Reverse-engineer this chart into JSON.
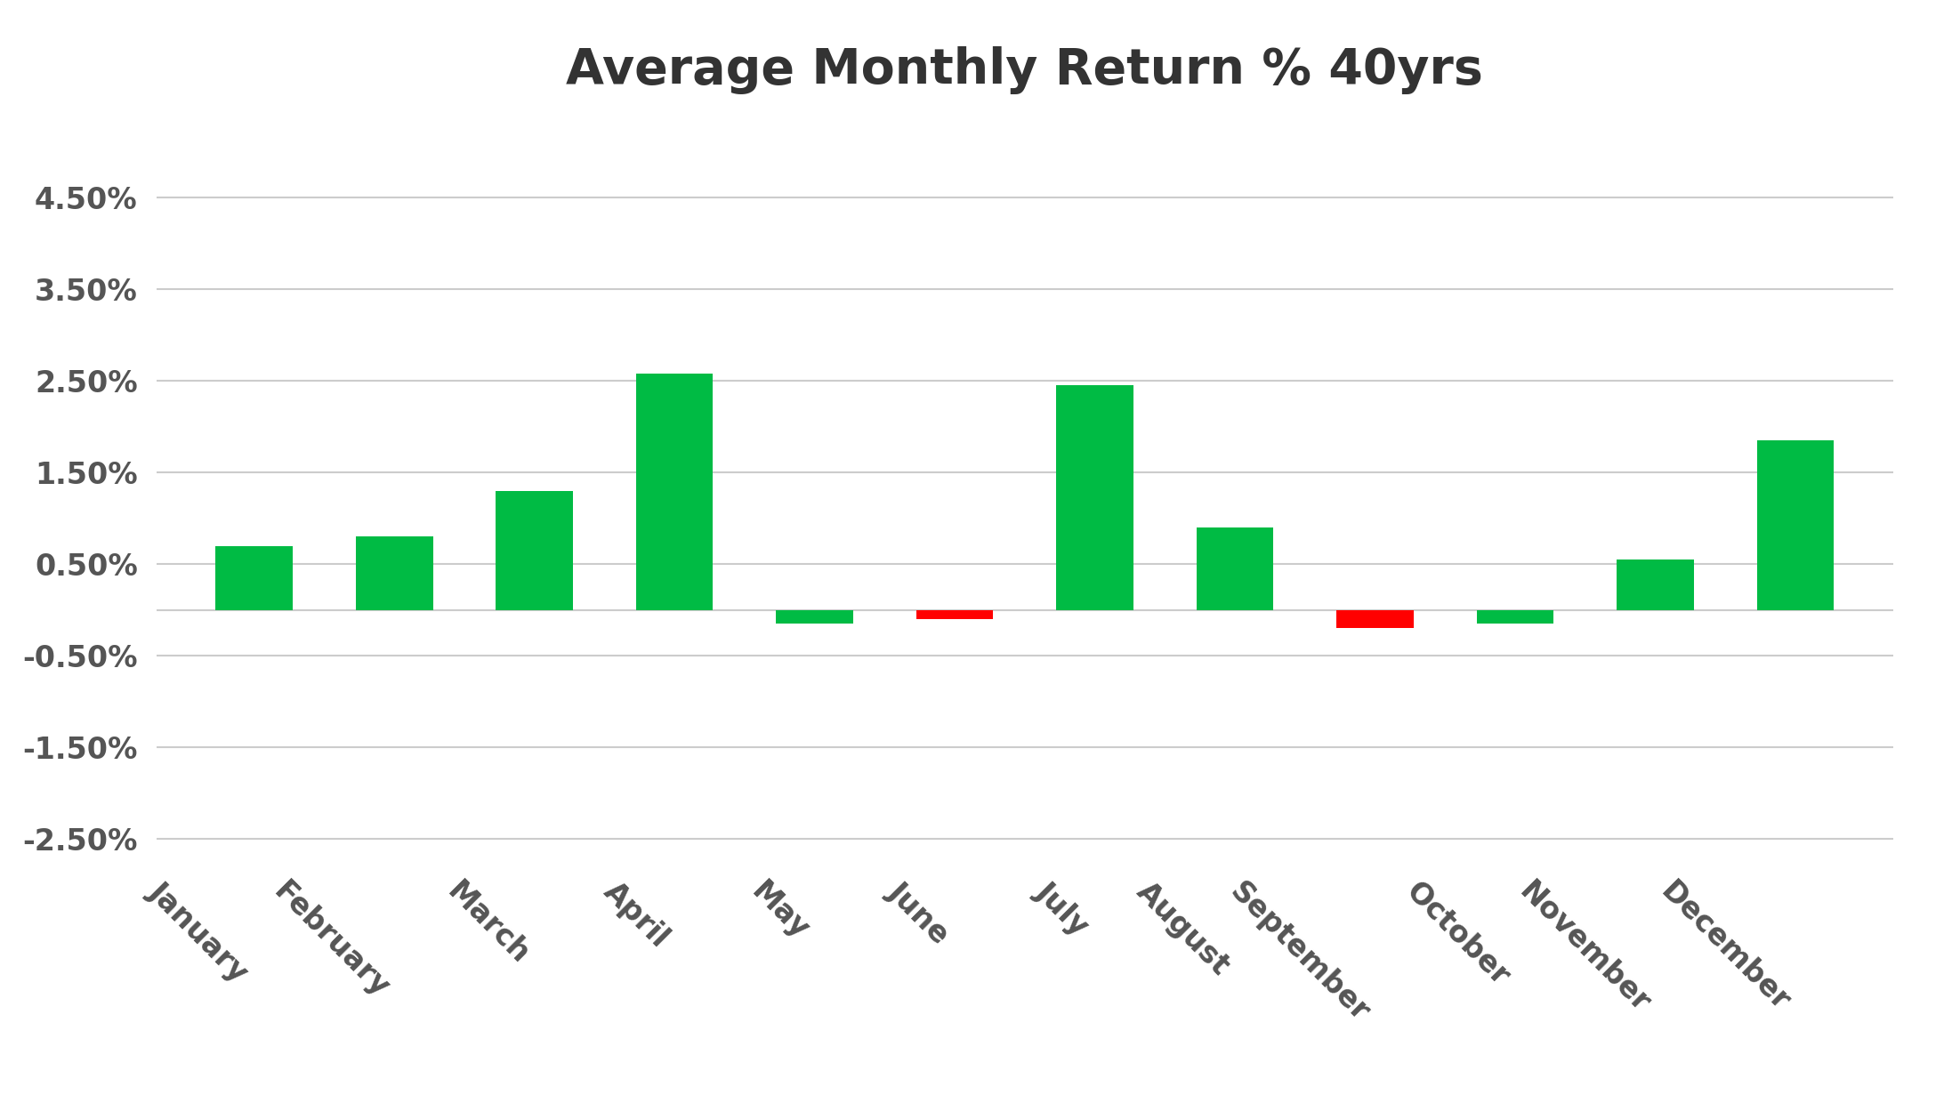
{
  "title": "Average Monthly Return % 40yrs",
  "months": [
    "January",
    "February",
    "March",
    "April",
    "May",
    "June",
    "July",
    "August",
    "September",
    "October",
    "November",
    "December"
  ],
  "values": [
    0.007,
    0.008,
    0.013,
    0.0258,
    -0.0015,
    -0.001,
    0.0245,
    0.009,
    -0.002,
    -0.0015,
    0.0055,
    0.0185
  ],
  "bar_colors": [
    "#00bb44",
    "#00bb44",
    "#00bb44",
    "#00bb44",
    "#00bb44",
    "#ff0000",
    "#00bb44",
    "#00bb44",
    "#ff0000",
    "#00bb44",
    "#00bb44",
    "#00bb44"
  ],
  "background_color": "#ffffff",
  "title_fontsize": 40,
  "title_color": "#333333",
  "ylim_min": -0.028,
  "ylim_max": 0.052,
  "yticks": [
    -0.025,
    -0.015,
    -0.005,
    0.005,
    0.015,
    0.025,
    0.035,
    0.045
  ],
  "ytick_labels": [
    "-2.50%",
    "-1.50%",
    "-0.50%",
    "0.50%",
    "1.50%",
    "2.50%",
    "3.50%",
    "4.50%"
  ],
  "grid_color": "#cccccc",
  "tick_color": "#555555",
  "bar_width": 0.55,
  "xlabel_rotation": -45,
  "xlabel_ha": "right",
  "xlabel_fontsize": 24,
  "ylabel_fontsize": 24
}
